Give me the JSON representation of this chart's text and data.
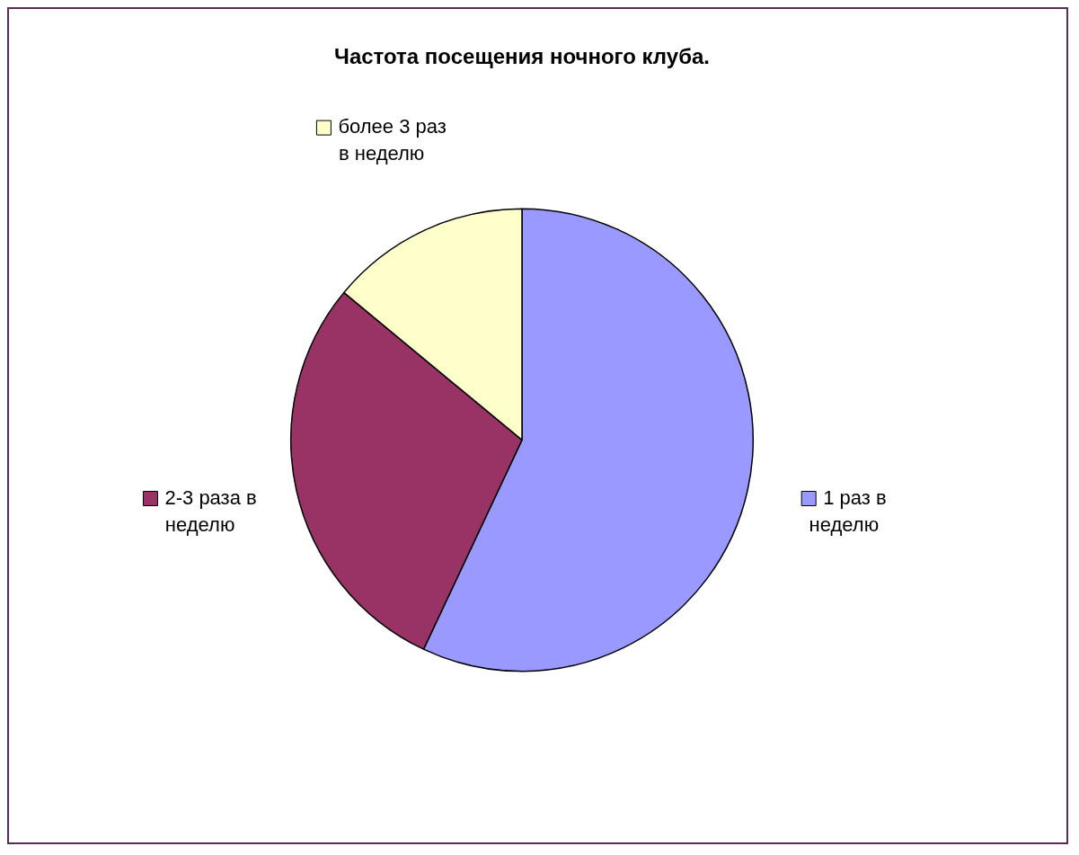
{
  "chart_data": {
    "type": "pie",
    "title": "Частота посещения ночного клуба.",
    "categories": [
      "1 раз в неделю",
      "2-3 раза в неделю",
      "более 3 раз в неделю"
    ],
    "values": [
      57,
      29,
      14
    ],
    "colors": [
      "#9999ff",
      "#993366",
      "#ffffcc"
    ],
    "legend": true
  }
}
